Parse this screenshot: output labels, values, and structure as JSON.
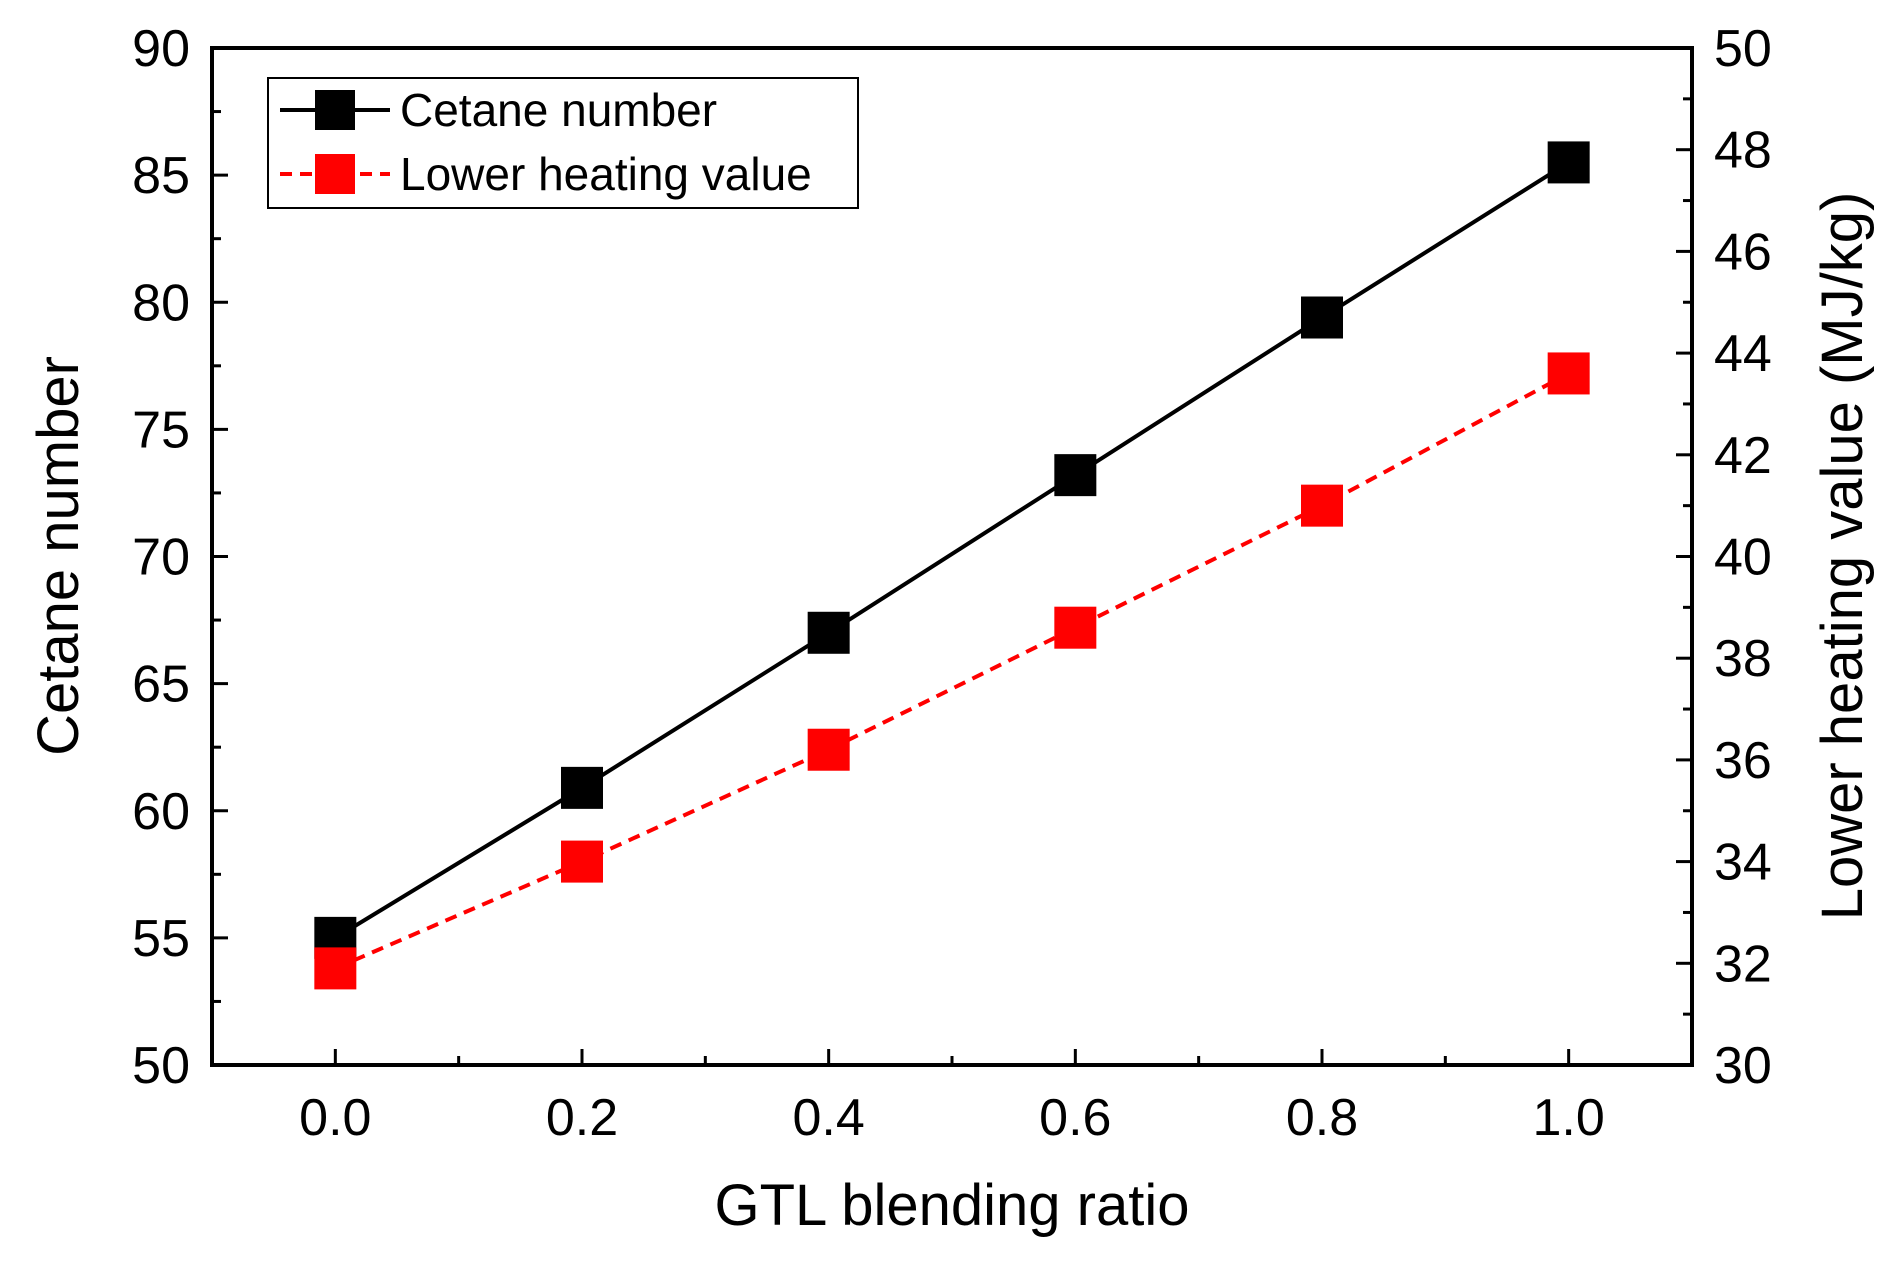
{
  "chart_data": {
    "type": "line",
    "title": "",
    "xlabel": "GTL blending ratio",
    "ylabel": "Cetane number",
    "y2label": "Lower heating value (MJ/kg)",
    "xlim": [
      -0.1,
      1.1
    ],
    "ylim": [
      50,
      90
    ],
    "y2lim": [
      30,
      50
    ],
    "x_ticks": [
      "0.0",
      "0.2",
      "0.4",
      "0.6",
      "0.8",
      "1.0"
    ],
    "y_ticks": [
      "50",
      "55",
      "60",
      "65",
      "70",
      "75",
      "80",
      "85",
      "90"
    ],
    "y2_ticks": [
      "30",
      "32",
      "34",
      "36",
      "38",
      "40",
      "42",
      "44",
      "46",
      "48",
      "50"
    ],
    "x": [
      0.0,
      0.2,
      0.4,
      0.6,
      0.8,
      1.0
    ],
    "series": [
      {
        "name": "Cetane number",
        "axis": "left",
        "color": "#000000",
        "line_style": "solid",
        "marker": "square",
        "values": [
          55.0,
          60.9,
          67.0,
          73.2,
          79.4,
          85.5
        ]
      },
      {
        "name": "Lower heating value",
        "axis": "right",
        "color": "#ff0000",
        "line_style": "dashed",
        "marker": "square",
        "values": [
          31.9,
          34.0,
          36.2,
          38.6,
          41.0,
          43.6
        ]
      }
    ],
    "legend_position": "top-left",
    "grid": false
  }
}
